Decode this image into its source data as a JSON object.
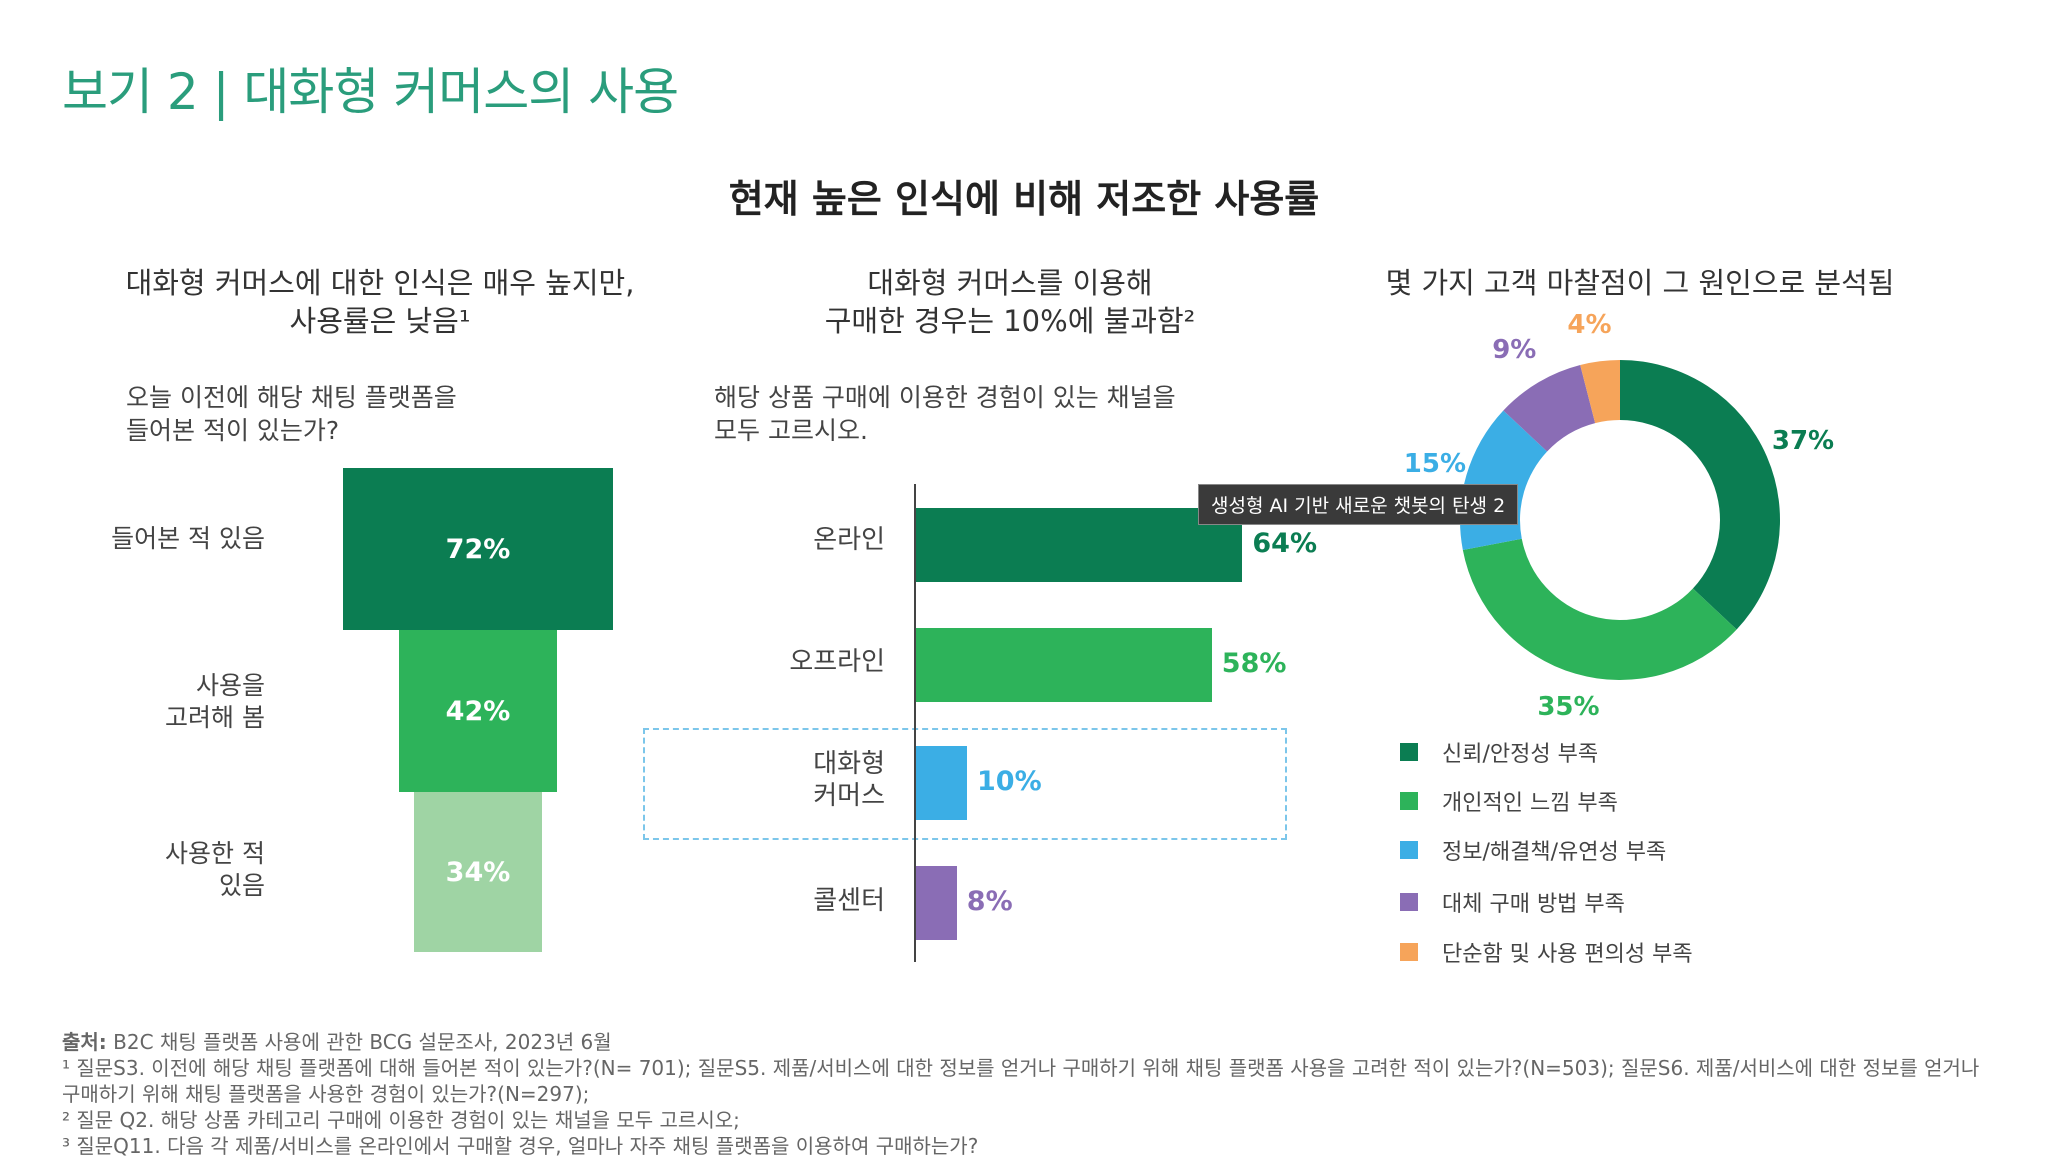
{
  "exhibit_title": "보기 2 | 대화형 커머스의 사용",
  "main_heading": "현재 높은 인식에 비해 저조한 사용률",
  "chart_data": [
    {
      "type": "bar",
      "title": "대화형 커머스에 대한 인식은 매우 높지만, 사용률은 낮음¹",
      "question": [
        "오늘 이전에 해당 채팅 플랫폼을",
        "들어본 적이 있는가?"
      ],
      "categories": [
        "들어본 적 있음",
        "사용을 고려해 봄",
        "사용한 적 있음"
      ],
      "category_lines": [
        [
          "들어본 적 있음"
        ],
        [
          "사용을",
          "고려해 봄"
        ],
        [
          "사용한 적",
          "있음"
        ]
      ],
      "values": [
        72,
        42,
        34
      ],
      "value_labels": [
        "72%",
        "42%",
        "34%"
      ],
      "colors": [
        "#0b7d52",
        "#2db35a",
        "#9fd4a4"
      ]
    },
    {
      "type": "bar",
      "title": "대화형 커머스를 이용해 구매한 경우는 10%에 불과함²",
      "title_lines": [
        "대화형 커머스를 이용해",
        "구매한 경우는 10%에 불과함²"
      ],
      "question": [
        "해당 상품 구매에 이용한 경험이 있는 채널을",
        "모두 고르시오."
      ],
      "categories": [
        "온라인",
        "오프라인",
        "대화형 커머스",
        "콜센터"
      ],
      "category_lines": [
        [
          "온라인"
        ],
        [
          "오프라인"
        ],
        [
          "대화형",
          "커머스"
        ],
        [
          "콜센터"
        ]
      ],
      "values": [
        64,
        58,
        10,
        8
      ],
      "value_labels": [
        "64%",
        "58%",
        "10%",
        "8%"
      ],
      "colors": [
        "#0b7d52",
        "#2db35a",
        "#3baee5",
        "#8a6db5"
      ],
      "highlight": "대화형 커머스"
    },
    {
      "type": "pie",
      "title": "몇 가지 고객 마찰점이 그 원인으로 분석됨",
      "categories": [
        "신뢰/안정성 부족",
        "개인적인 느낌 부족",
        "정보/해결책/유연성 부족",
        "대체 구매 방법 부족",
        "단순함 및 사용 편의성 부족"
      ],
      "values": [
        37,
        35,
        15,
        9,
        4
      ],
      "value_labels": [
        "37%",
        "35%",
        "15%",
        "9%",
        "4%"
      ],
      "colors": [
        "#0b7d52",
        "#2db35a",
        "#3baee5",
        "#8a6db5",
        "#f6a45a"
      ]
    }
  ],
  "tooltip": "생성형 AI 기반 새로운 챗봇의 탄생 2",
  "footnotes": {
    "source_label": "출처:",
    "source": " B2C 채팅 플랫폼 사용에 관한 BCG 설문조사, 2023년 6월",
    "note1_line1": "¹ 질문S3. 이전에 해당 채팅 플랫폼에 대해 들어본 적이 있는가?(N= 701); 질문S5. 제품/서비스에 대한 정보를 얻거나 구매하기 위해 채팅 플랫폼 사용을 고려한 적이 있는가?(N=503); 질문S6. 제품/서비스에 대한 정보를 얻거나",
    "note1_line2": "구매하기 위해 채팅 플랫폼을 사용한 경험이 있는가?(N=297);",
    "note2": "² 질문 Q2. 해당 상품 카테고리 구매에 이용한 경험이 있는 채널을 모두 고르시오;",
    "note3": "³ 질문Q11. 다음 각 제품/서비스를 온라인에서 구매할 경우, 얼마나 자주 채팅 플랫폼을 이용하여 구매하는가?"
  }
}
